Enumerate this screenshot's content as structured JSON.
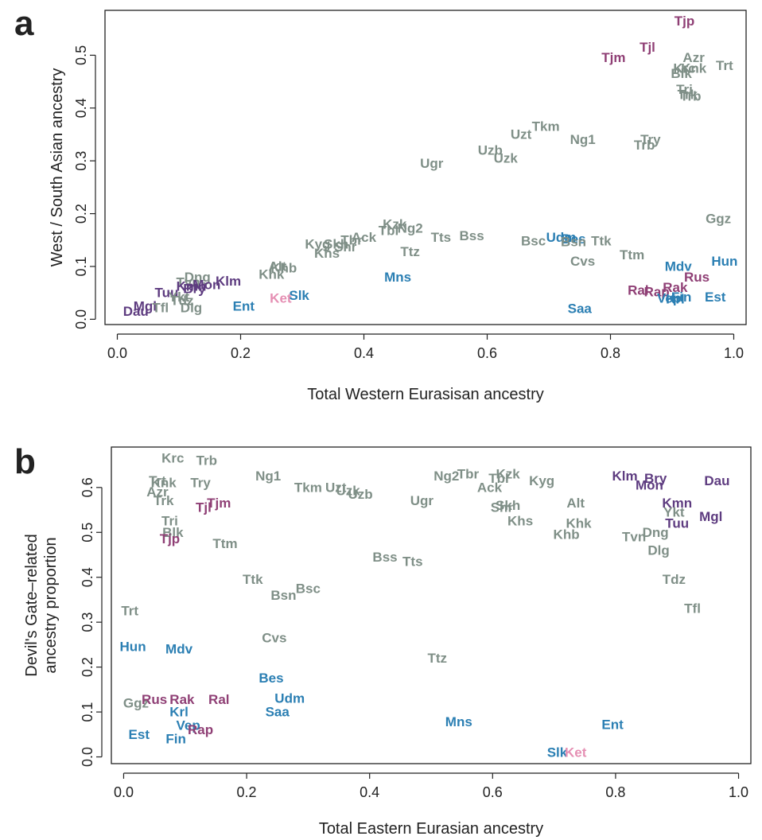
{
  "colors": {
    "grey": "#7f8f87",
    "blue": "#2b7fb3",
    "purple": "#5e3c80",
    "magenta": "#8f3f75",
    "pink": "#e58fb3"
  },
  "chart_data": [
    {
      "type": "scatter",
      "panel_letter": "a",
      "xlabel": "Total Western Eurasisan ancestry",
      "ylabel": "West / South Asian ancestry",
      "xlim": [
        -0.02,
        1.02
      ],
      "ylim": [
        -0.01,
        0.585
      ],
      "xticks": [
        0.0,
        0.2,
        0.4,
        0.6,
        0.8,
        1.0
      ],
      "xtick_labels": [
        "0.0",
        "0.2",
        "0.4",
        "0.6",
        "0.8",
        "1.0"
      ],
      "yticks": [
        0.0,
        0.1,
        0.2,
        0.3,
        0.4,
        0.5
      ],
      "ytick_labels": [
        "0.0",
        "0.1",
        "0.2",
        "0.3",
        "0.4",
        "0.5"
      ],
      "points": [
        {
          "label": "Tjp",
          "x": 0.92,
          "y": 0.565,
          "color": "magenta"
        },
        {
          "label": "Tjl",
          "x": 0.86,
          "y": 0.515,
          "color": "magenta"
        },
        {
          "label": "Tjm",
          "x": 0.805,
          "y": 0.495,
          "color": "magenta"
        },
        {
          "label": "Azr",
          "x": 0.935,
          "y": 0.495,
          "color": "grey"
        },
        {
          "label": "Krc",
          "x": 0.92,
          "y": 0.475,
          "color": "grey"
        },
        {
          "label": "Knk",
          "x": 0.935,
          "y": 0.475,
          "color": "grey"
        },
        {
          "label": "Trt",
          "x": 0.985,
          "y": 0.48,
          "color": "grey"
        },
        {
          "label": "Blk",
          "x": 0.915,
          "y": 0.465,
          "color": "grey"
        },
        {
          "label": "Tri",
          "x": 0.92,
          "y": 0.435,
          "color": "grey"
        },
        {
          "label": "Trk",
          "x": 0.925,
          "y": 0.425,
          "color": "grey"
        },
        {
          "label": "Trb",
          "x": 0.93,
          "y": 0.422,
          "color": "grey"
        },
        {
          "label": "Tkm",
          "x": 0.695,
          "y": 0.365,
          "color": "grey"
        },
        {
          "label": "Uzt",
          "x": 0.655,
          "y": 0.35,
          "color": "grey"
        },
        {
          "label": "Ng1",
          "x": 0.755,
          "y": 0.34,
          "color": "grey"
        },
        {
          "label": "Try",
          "x": 0.865,
          "y": 0.34,
          "color": "grey"
        },
        {
          "label": "Trb",
          "x": 0.855,
          "y": 0.33,
          "color": "grey"
        },
        {
          "label": "Uzb",
          "x": 0.605,
          "y": 0.32,
          "color": "grey"
        },
        {
          "label": "Uzk",
          "x": 0.63,
          "y": 0.305,
          "color": "grey"
        },
        {
          "label": "Ugr",
          "x": 0.51,
          "y": 0.295,
          "color": "grey"
        },
        {
          "label": "Ggz",
          "x": 0.975,
          "y": 0.19,
          "color": "grey"
        },
        {
          "label": "Kzk",
          "x": 0.45,
          "y": 0.18,
          "color": "grey"
        },
        {
          "label": "Ng2",
          "x": 0.475,
          "y": 0.172,
          "color": "grey"
        },
        {
          "label": "Tbl",
          "x": 0.44,
          "y": 0.168,
          "color": "grey"
        },
        {
          "label": "Tts",
          "x": 0.525,
          "y": 0.155,
          "color": "grey"
        },
        {
          "label": "Bss",
          "x": 0.575,
          "y": 0.158,
          "color": "grey"
        },
        {
          "label": "Ack",
          "x": 0.4,
          "y": 0.155,
          "color": "grey"
        },
        {
          "label": "Tbr",
          "x": 0.38,
          "y": 0.15,
          "color": "grey"
        },
        {
          "label": "Kyg",
          "x": 0.325,
          "y": 0.142,
          "color": "grey"
        },
        {
          "label": "Skh",
          "x": 0.355,
          "y": 0.142,
          "color": "grey"
        },
        {
          "label": "Shr",
          "x": 0.37,
          "y": 0.137,
          "color": "grey"
        },
        {
          "label": "Khs",
          "x": 0.34,
          "y": 0.125,
          "color": "grey"
        },
        {
          "label": "Ttz",
          "x": 0.475,
          "y": 0.128,
          "color": "grey"
        },
        {
          "label": "Bsc",
          "x": 0.675,
          "y": 0.148,
          "color": "grey"
        },
        {
          "label": "Udm",
          "x": 0.72,
          "y": 0.155,
          "color": "blue"
        },
        {
          "label": "Bes",
          "x": 0.74,
          "y": 0.152,
          "color": "blue"
        },
        {
          "label": "Bsn",
          "x": 0.74,
          "y": 0.147,
          "color": "grey"
        },
        {
          "label": "Ttk",
          "x": 0.785,
          "y": 0.148,
          "color": "grey"
        },
        {
          "label": "Ttm",
          "x": 0.835,
          "y": 0.122,
          "color": "grey"
        },
        {
          "label": "Cvs",
          "x": 0.755,
          "y": 0.11,
          "color": "grey"
        },
        {
          "label": "Mdv",
          "x": 0.91,
          "y": 0.1,
          "color": "blue"
        },
        {
          "label": "Hun",
          "x": 0.985,
          "y": 0.11,
          "color": "blue"
        },
        {
          "label": "Rus",
          "x": 0.94,
          "y": 0.08,
          "color": "magenta"
        },
        {
          "label": "Rak",
          "x": 0.905,
          "y": 0.06,
          "color": "magenta"
        },
        {
          "label": "Ral",
          "x": 0.845,
          "y": 0.055,
          "color": "magenta"
        },
        {
          "label": "Rap",
          "x": 0.875,
          "y": 0.052,
          "color": "magenta"
        },
        {
          "label": "Fin",
          "x": 0.915,
          "y": 0.042,
          "color": "blue"
        },
        {
          "label": "Vep",
          "x": 0.895,
          "y": 0.04,
          "color": "blue"
        },
        {
          "label": "Krl",
          "x": 0.905,
          "y": 0.038,
          "color": "blue"
        },
        {
          "label": "Est",
          "x": 0.97,
          "y": 0.042,
          "color": "blue"
        },
        {
          "label": "Saa",
          "x": 0.75,
          "y": 0.02,
          "color": "blue"
        },
        {
          "label": "Alt",
          "x": 0.26,
          "y": 0.1,
          "color": "grey"
        },
        {
          "label": "Khb",
          "x": 0.27,
          "y": 0.097,
          "color": "grey"
        },
        {
          "label": "Khk",
          "x": 0.25,
          "y": 0.085,
          "color": "grey"
        },
        {
          "label": "Mns",
          "x": 0.455,
          "y": 0.08,
          "color": "blue"
        },
        {
          "label": "Dng",
          "x": 0.13,
          "y": 0.08,
          "color": "grey"
        },
        {
          "label": "Tvn",
          "x": 0.115,
          "y": 0.07,
          "color": "grey"
        },
        {
          "label": "Klm",
          "x": 0.18,
          "y": 0.072,
          "color": "purple"
        },
        {
          "label": "Mon",
          "x": 0.145,
          "y": 0.065,
          "color": "purple"
        },
        {
          "label": "Kmn",
          "x": 0.12,
          "y": 0.062,
          "color": "purple"
        },
        {
          "label": "Bry",
          "x": 0.125,
          "y": 0.058,
          "color": "purple"
        },
        {
          "label": "Tuu",
          "x": 0.08,
          "y": 0.05,
          "color": "purple"
        },
        {
          "label": "Ykt",
          "x": 0.1,
          "y": 0.042,
          "color": "grey"
        },
        {
          "label": "Tdz",
          "x": 0.105,
          "y": 0.035,
          "color": "grey"
        },
        {
          "label": "Dlg",
          "x": 0.12,
          "y": 0.022,
          "color": "grey"
        },
        {
          "label": "Mgl",
          "x": 0.045,
          "y": 0.025,
          "color": "purple"
        },
        {
          "label": "Tfl",
          "x": 0.07,
          "y": 0.022,
          "color": "grey"
        },
        {
          "label": "Dau",
          "x": 0.03,
          "y": 0.015,
          "color": "purple"
        },
        {
          "label": "Ent",
          "x": 0.205,
          "y": 0.025,
          "color": "blue"
        },
        {
          "label": "Ket",
          "x": 0.265,
          "y": 0.04,
          "color": "pink"
        },
        {
          "label": "Slk",
          "x": 0.295,
          "y": 0.045,
          "color": "blue"
        }
      ]
    },
    {
      "type": "scatter",
      "panel_letter": "b",
      "xlabel": "Total Eastern Eurasian ancestry",
      "ylabel_lines": [
        "Devil's Gate–related",
        "ancestry proportion"
      ],
      "xlim": [
        -0.02,
        1.02
      ],
      "ylim": [
        -0.015,
        0.69
      ],
      "xticks": [
        0.0,
        0.2,
        0.4,
        0.6,
        0.8,
        1.0
      ],
      "xtick_labels": [
        "0.0",
        "0.2",
        "0.4",
        "0.6",
        "0.8",
        "1.0"
      ],
      "yticks": [
        0.0,
        0.1,
        0.2,
        0.3,
        0.4,
        0.5,
        0.6
      ],
      "ytick_labels": [
        "0.0",
        "0.1",
        "0.2",
        "0.3",
        "0.4",
        "0.5",
        "0.6"
      ],
      "points": [
        {
          "label": "Krc",
          "x": 0.08,
          "y": 0.665,
          "color": "grey"
        },
        {
          "label": "Trb",
          "x": 0.135,
          "y": 0.66,
          "color": "grey"
        },
        {
          "label": "Trt",
          "x": 0.055,
          "y": 0.615,
          "color": "grey"
        },
        {
          "label": "Knk",
          "x": 0.065,
          "y": 0.61,
          "color": "grey"
        },
        {
          "label": "Try",
          "x": 0.125,
          "y": 0.61,
          "color": "grey"
        },
        {
          "label": "Azr",
          "x": 0.055,
          "y": 0.59,
          "color": "grey"
        },
        {
          "label": "Trk",
          "x": 0.065,
          "y": 0.57,
          "color": "grey"
        },
        {
          "label": "Tjm",
          "x": 0.155,
          "y": 0.565,
          "color": "magenta"
        },
        {
          "label": "Tjl",
          "x": 0.13,
          "y": 0.555,
          "color": "magenta"
        },
        {
          "label": "Tri",
          "x": 0.075,
          "y": 0.525,
          "color": "grey"
        },
        {
          "label": "Blk",
          "x": 0.08,
          "y": 0.5,
          "color": "grey"
        },
        {
          "label": "Tjp",
          "x": 0.075,
          "y": 0.485,
          "color": "magenta"
        },
        {
          "label": "Ttm",
          "x": 0.165,
          "y": 0.475,
          "color": "grey"
        },
        {
          "label": "Ng1",
          "x": 0.235,
          "y": 0.625,
          "color": "grey"
        },
        {
          "label": "Tkm",
          "x": 0.3,
          "y": 0.6,
          "color": "grey"
        },
        {
          "label": "Uzt",
          "x": 0.345,
          "y": 0.6,
          "color": "grey"
        },
        {
          "label": "Uzk",
          "x": 0.365,
          "y": 0.593,
          "color": "grey"
        },
        {
          "label": "Uzb",
          "x": 0.385,
          "y": 0.585,
          "color": "grey"
        },
        {
          "label": "Ugr",
          "x": 0.485,
          "y": 0.57,
          "color": "grey"
        },
        {
          "label": "Ng2",
          "x": 0.525,
          "y": 0.625,
          "color": "grey"
        },
        {
          "label": "Tbr",
          "x": 0.56,
          "y": 0.63,
          "color": "grey"
        },
        {
          "label": "Kzk",
          "x": 0.625,
          "y": 0.63,
          "color": "grey"
        },
        {
          "label": "Kyg",
          "x": 0.68,
          "y": 0.615,
          "color": "grey"
        },
        {
          "label": "Tbl",
          "x": 0.61,
          "y": 0.62,
          "color": "grey"
        },
        {
          "label": "Ack",
          "x": 0.595,
          "y": 0.6,
          "color": "grey"
        },
        {
          "label": "Skh",
          "x": 0.625,
          "y": 0.56,
          "color": "grey"
        },
        {
          "label": "Shr",
          "x": 0.615,
          "y": 0.555,
          "color": "grey"
        },
        {
          "label": "Khs",
          "x": 0.645,
          "y": 0.525,
          "color": "grey"
        },
        {
          "label": "Alt",
          "x": 0.735,
          "y": 0.565,
          "color": "grey"
        },
        {
          "label": "Khk",
          "x": 0.74,
          "y": 0.52,
          "color": "grey"
        },
        {
          "label": "Khb",
          "x": 0.72,
          "y": 0.495,
          "color": "grey"
        },
        {
          "label": "Klm",
          "x": 0.815,
          "y": 0.625,
          "color": "purple"
        },
        {
          "label": "Bry",
          "x": 0.865,
          "y": 0.62,
          "color": "purple"
        },
        {
          "label": "Mon",
          "x": 0.855,
          "y": 0.605,
          "color": "purple"
        },
        {
          "label": "Dau",
          "x": 0.965,
          "y": 0.615,
          "color": "purple"
        },
        {
          "label": "Kmn",
          "x": 0.9,
          "y": 0.565,
          "color": "purple"
        },
        {
          "label": "Ykt",
          "x": 0.895,
          "y": 0.545,
          "color": "grey"
        },
        {
          "label": "Mgl",
          "x": 0.955,
          "y": 0.535,
          "color": "purple"
        },
        {
          "label": "Tuu",
          "x": 0.9,
          "y": 0.52,
          "color": "purple"
        },
        {
          "label": "Dng",
          "x": 0.865,
          "y": 0.5,
          "color": "grey"
        },
        {
          "label": "Tvn",
          "x": 0.83,
          "y": 0.49,
          "color": "grey"
        },
        {
          "label": "Dlg",
          "x": 0.87,
          "y": 0.46,
          "color": "grey"
        },
        {
          "label": "Tdz",
          "x": 0.895,
          "y": 0.395,
          "color": "grey"
        },
        {
          "label": "Tfl",
          "x": 0.925,
          "y": 0.33,
          "color": "grey"
        },
        {
          "label": "Bss",
          "x": 0.425,
          "y": 0.445,
          "color": "grey"
        },
        {
          "label": "Tts",
          "x": 0.47,
          "y": 0.435,
          "color": "grey"
        },
        {
          "label": "Ttk",
          "x": 0.21,
          "y": 0.395,
          "color": "grey"
        },
        {
          "label": "Bsn",
          "x": 0.26,
          "y": 0.36,
          "color": "grey"
        },
        {
          "label": "Bsc",
          "x": 0.3,
          "y": 0.375,
          "color": "grey"
        },
        {
          "label": "Trt",
          "x": 0.01,
          "y": 0.325,
          "color": "grey"
        },
        {
          "label": "Cvs",
          "x": 0.245,
          "y": 0.265,
          "color": "grey"
        },
        {
          "label": "Ttz",
          "x": 0.51,
          "y": 0.22,
          "color": "grey"
        },
        {
          "label": "Hun",
          "x": 0.015,
          "y": 0.245,
          "color": "blue"
        },
        {
          "label": "Mdv",
          "x": 0.09,
          "y": 0.24,
          "color": "blue"
        },
        {
          "label": "Bes",
          "x": 0.24,
          "y": 0.175,
          "color": "blue"
        },
        {
          "label": "Udm",
          "x": 0.27,
          "y": 0.13,
          "color": "blue"
        },
        {
          "label": "Saa",
          "x": 0.25,
          "y": 0.1,
          "color": "blue"
        },
        {
          "label": "Ggz",
          "x": 0.02,
          "y": 0.12,
          "color": "grey"
        },
        {
          "label": "Rus",
          "x": 0.05,
          "y": 0.128,
          "color": "magenta"
        },
        {
          "label": "Rak",
          "x": 0.095,
          "y": 0.128,
          "color": "magenta"
        },
        {
          "label": "Ral",
          "x": 0.155,
          "y": 0.128,
          "color": "magenta"
        },
        {
          "label": "Krl",
          "x": 0.09,
          "y": 0.1,
          "color": "blue"
        },
        {
          "label": "Vep",
          "x": 0.105,
          "y": 0.07,
          "color": "blue"
        },
        {
          "label": "Rap",
          "x": 0.125,
          "y": 0.06,
          "color": "magenta"
        },
        {
          "label": "Est",
          "x": 0.025,
          "y": 0.05,
          "color": "blue"
        },
        {
          "label": "Fin",
          "x": 0.085,
          "y": 0.04,
          "color": "blue"
        },
        {
          "label": "Mns",
          "x": 0.545,
          "y": 0.078,
          "color": "blue"
        },
        {
          "label": "Ent",
          "x": 0.795,
          "y": 0.072,
          "color": "blue"
        },
        {
          "label": "Slk",
          "x": 0.705,
          "y": 0.01,
          "color": "blue"
        },
        {
          "label": "Ket",
          "x": 0.735,
          "y": 0.01,
          "color": "pink"
        }
      ]
    }
  ]
}
